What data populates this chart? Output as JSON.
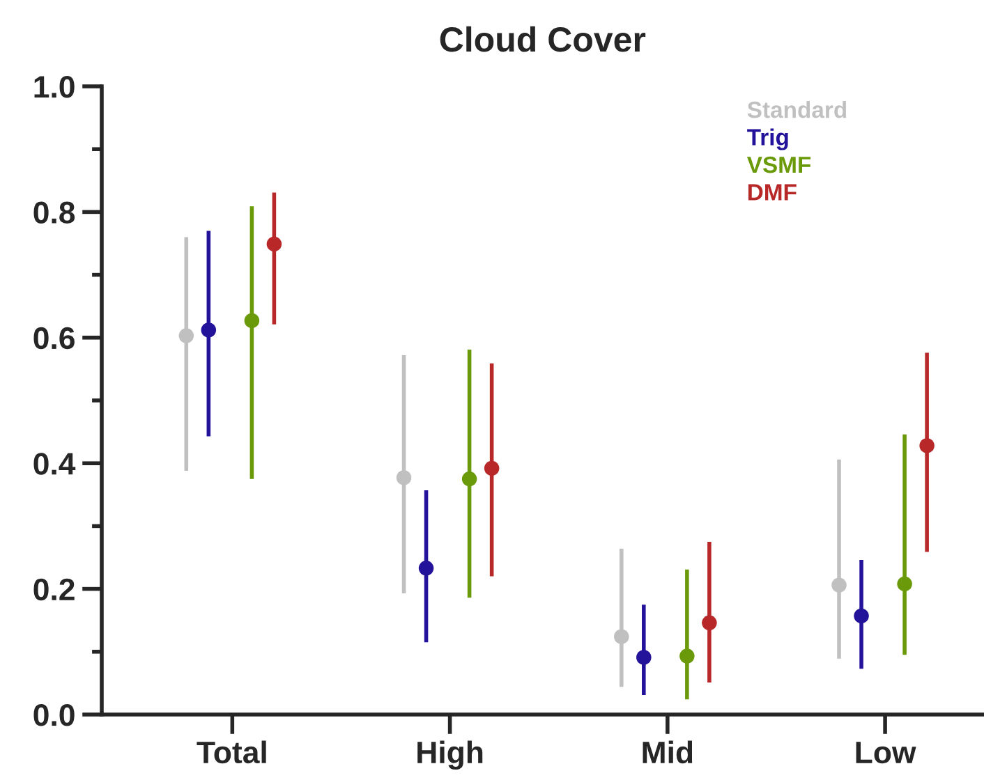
{
  "chart_data": {
    "type": "scatter",
    "title": "Cloud Cover",
    "categories": [
      "Total",
      "High",
      "Mid",
      "Low"
    ],
    "series": [
      {
        "name": "Standard",
        "color": "#c0c0c0",
        "values": [
          0.603,
          0.377,
          0.124,
          0.206
        ],
        "errors": [
          [
            0.388,
            0.76
          ],
          [
            0.193,
            0.572
          ],
          [
            0.044,
            0.264
          ],
          [
            0.089,
            0.406
          ]
        ]
      },
      {
        "name": "Trig",
        "color": "#22139a",
        "values": [
          0.612,
          0.233,
          0.091,
          0.157
        ],
        "errors": [
          [
            0.443,
            0.77
          ],
          [
            0.115,
            0.357
          ],
          [
            0.031,
            0.175
          ],
          [
            0.073,
            0.246
          ]
        ]
      },
      {
        "name": "VSMF",
        "color": "#6a9a0a",
        "values": [
          0.627,
          0.375,
          0.093,
          0.208
        ],
        "errors": [
          [
            0.375,
            0.809
          ],
          [
            0.186,
            0.581
          ],
          [
            0.024,
            0.231
          ],
          [
            0.095,
            0.446
          ]
        ]
      },
      {
        "name": "DMF",
        "color": "#b82828",
        "values": [
          0.749,
          0.392,
          0.146,
          0.428
        ],
        "errors": [
          [
            0.621,
            0.831
          ],
          [
            0.22,
            0.559
          ],
          [
            0.051,
            0.275
          ],
          [
            0.259,
            0.576
          ]
        ]
      }
    ],
    "ylim": [
      0,
      1
    ],
    "yticks": [
      {
        "value": 0,
        "label": "0.0"
      },
      {
        "value": 0.2,
        "label": "0.2"
      },
      {
        "value": 0.4,
        "label": "0.4"
      },
      {
        "value": 0.6,
        "label": "0.6"
      },
      {
        "value": 0.8,
        "label": "0.8"
      },
      {
        "value": 1,
        "label": "1.0"
      }
    ],
    "marker": "circle",
    "grid": false,
    "legend": "top right"
  }
}
